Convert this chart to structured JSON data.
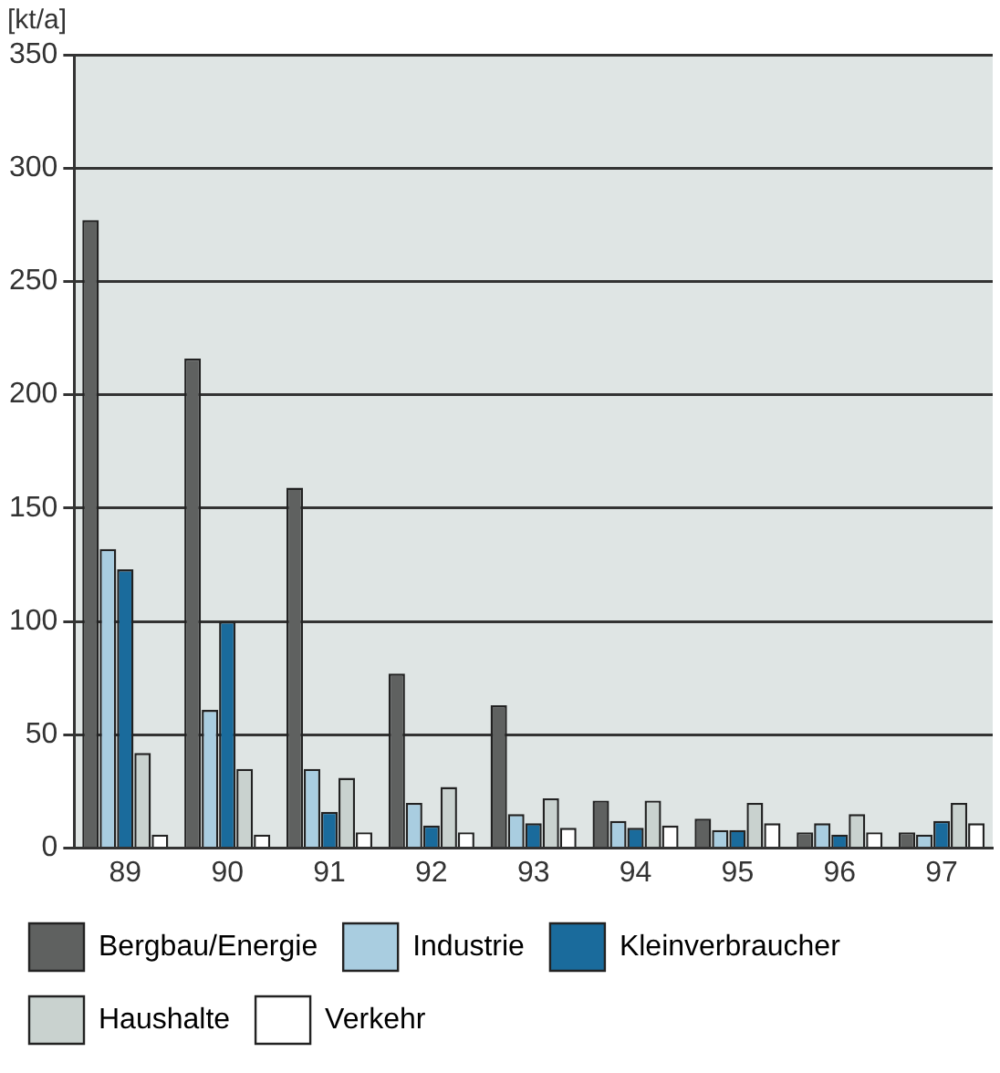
{
  "chart_data": {
    "type": "bar",
    "ylabel": "[kt/a]",
    "categories": [
      "89",
      "90",
      "91",
      "92",
      "93",
      "94",
      "95",
      "96",
      "97"
    ],
    "series": [
      {
        "name": "Bergbau/Energie",
        "color": "#5f6160",
        "values": [
          277,
          216,
          159,
          77,
          63,
          21,
          13,
          7,
          7
        ]
      },
      {
        "name": "Industrie",
        "color": "#a9cde0",
        "values": [
          132,
          61,
          35,
          20,
          15,
          12,
          8,
          11,
          6
        ]
      },
      {
        "name": "Kleinverbraucher",
        "color": "#1a6b9c",
        "values": [
          123,
          100,
          16,
          10,
          11,
          9,
          8,
          6,
          12
        ]
      },
      {
        "name": "Haushalte",
        "color": "#c9d2cf",
        "values": [
          42,
          35,
          31,
          27,
          22,
          21,
          20,
          15,
          20
        ]
      },
      {
        "name": "Verkehr",
        "color": "#ffffff",
        "values": [
          6,
          6,
          7,
          7,
          9,
          10,
          11,
          7,
          11
        ]
      }
    ],
    "ylim": [
      0,
      350
    ],
    "yticks": [
      0,
      50,
      100,
      150,
      200,
      250,
      300,
      350
    ],
    "grid": "y",
    "legend": "bottom"
  }
}
